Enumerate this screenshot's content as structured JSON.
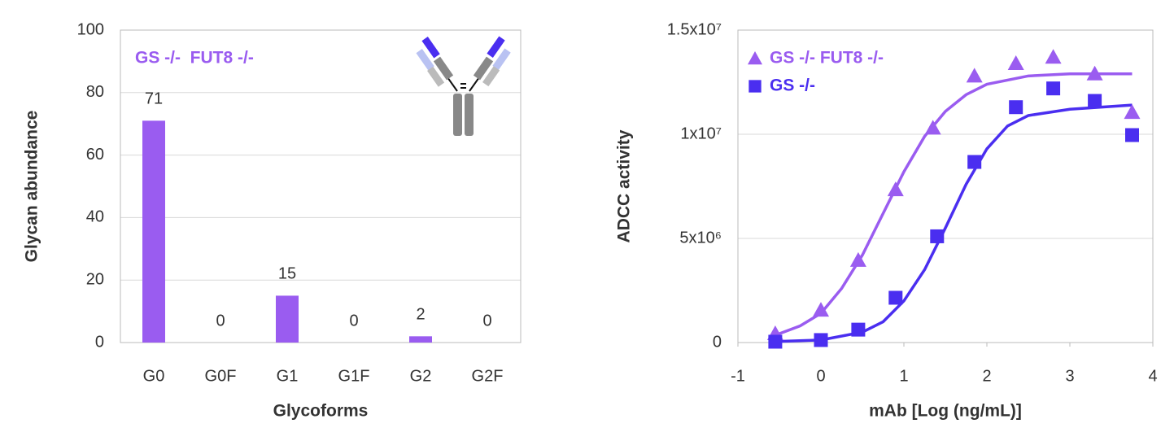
{
  "chart_data": [
    {
      "type": "bar",
      "legend": "GS -/-  FUT8 -/-",
      "color": "#9a5cf0",
      "categories": [
        "G0",
        "G0F",
        "G1",
        "G1F",
        "G2",
        "G2F"
      ],
      "values": [
        71,
        0,
        15,
        0,
        2,
        0
      ],
      "ylim": [
        0,
        100
      ],
      "yticks": [
        0,
        20,
        40,
        60,
        80,
        100
      ],
      "grid": true,
      "xlabel": "Glycoforms",
      "ylabel": "Glycan abundance"
    },
    {
      "type": "scatter",
      "xlabel": "mAb [Log (ng/mL)]",
      "ylabel": "ADCC activity",
      "xlim": [
        -1,
        4
      ],
      "xticks": [
        -1,
        0,
        1,
        2,
        3,
        4
      ],
      "ylim": [
        0,
        15000000
      ],
      "yticks": [
        0,
        {
          "value": 5000000,
          "label": "5x10⁶"
        },
        {
          "value": 10000000,
          "label": "1x10⁷"
        },
        {
          "value": 15000000,
          "label": "1.5x10⁷"
        }
      ],
      "grid": true,
      "legend_position": "upper left",
      "series": [
        {
          "name": "GS -/- FUT8 -/-",
          "color": "#9a5cf0",
          "marker": "triangle",
          "x": [
            -0.55,
            0,
            0.45,
            0.9,
            1.35,
            1.85,
            2.35,
            2.8,
            3.3,
            3.75
          ],
          "values": [
            430000,
            1560000,
            3950000,
            7340000,
            10300000,
            12800000,
            13400000,
            13700000,
            12900000,
            11050000
          ],
          "fit": {
            "x": [
              -0.55,
              -0.25,
              0,
              0.25,
              0.5,
              0.75,
              1,
              1.25,
              1.5,
              1.75,
              2,
              2.5,
              3,
              3.75
            ],
            "values": [
              350000,
              800000,
              1400000,
              2600000,
              4200000,
              6200000,
              8200000,
              9900000,
              11100000,
              11900000,
              12400000,
              12800000,
              12900000,
              12900000
            ]
          }
        },
        {
          "name": "GS -/-",
          "color": "#4a2ef0",
          "marker": "square",
          "x": [
            -0.55,
            0,
            0.45,
            0.9,
            1.4,
            1.85,
            2.35,
            2.8,
            3.3,
            3.75
          ],
          "values": [
            40000,
            120000,
            620000,
            2150000,
            5100000,
            8670000,
            11300000,
            12200000,
            11600000,
            9960000
          ],
          "fit": {
            "x": [
              -0.55,
              0,
              0.5,
              0.75,
              1,
              1.25,
              1.5,
              1.75,
              2,
              2.25,
              2.5,
              3,
              3.75
            ],
            "values": [
              50000,
              120000,
              500000,
              1000000,
              2000000,
              3500000,
              5500000,
              7600000,
              9300000,
              10400000,
              10900000,
              11200000,
              11400000
            ]
          }
        }
      ]
    }
  ]
}
